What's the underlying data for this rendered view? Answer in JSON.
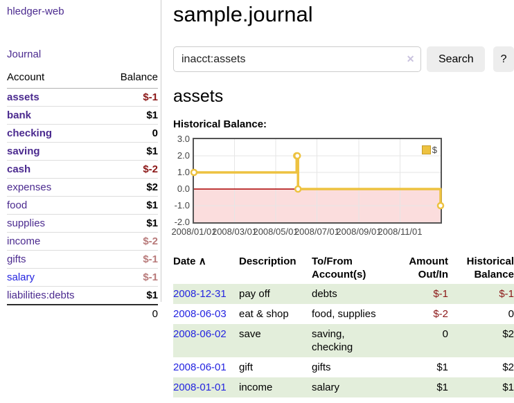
{
  "app": {
    "title": "hledger-web",
    "nav_journal": "Journal"
  },
  "sidebar": {
    "headers": {
      "account": "Account",
      "balance": "Balance"
    },
    "rows": [
      {
        "account": "assets",
        "balance": "$-1",
        "indent": 1,
        "bold": true,
        "neg": "strong",
        "blue": false
      },
      {
        "account": "bank",
        "balance": "$1",
        "indent": 2,
        "bold": true,
        "neg": "none",
        "blue": false
      },
      {
        "account": "checking",
        "balance": "0",
        "indent": 3,
        "bold": true,
        "neg": "none",
        "blue": false
      },
      {
        "account": "saving",
        "balance": "$1",
        "indent": 3,
        "bold": true,
        "neg": "none",
        "blue": false
      },
      {
        "account": "cash",
        "balance": "$-2",
        "indent": 2,
        "bold": true,
        "neg": "strong",
        "blue": false
      },
      {
        "account": "expenses",
        "balance": "$2",
        "indent": 1,
        "bold": false,
        "neg": "none",
        "blue": false
      },
      {
        "account": "food",
        "balance": "$1",
        "indent": 2,
        "bold": false,
        "neg": "none",
        "blue": false
      },
      {
        "account": "supplies",
        "balance": "$1",
        "indent": 2,
        "bold": false,
        "neg": "none",
        "blue": false
      },
      {
        "account": "income",
        "balance": "$-2",
        "indent": 1,
        "bold": false,
        "neg": "muted",
        "blue": false
      },
      {
        "account": "gifts",
        "balance": "$-1",
        "indent": 2,
        "bold": false,
        "neg": "muted",
        "blue": false
      },
      {
        "account": "salary",
        "balance": "$-1",
        "indent": 2,
        "bold": false,
        "neg": "muted",
        "blue": true
      },
      {
        "account": "liabilities:debts",
        "balance": "$1",
        "indent": 1,
        "bold": false,
        "neg": "none",
        "blue": false
      }
    ],
    "total": "0"
  },
  "main": {
    "title": "sample.journal",
    "search": {
      "value": "inacct:assets",
      "clear_icon": "✕",
      "search_label": "Search",
      "help_label": "?"
    },
    "account_heading": "assets",
    "chart_title": "Historical Balance:"
  },
  "chart_data": {
    "type": "line",
    "step": true,
    "title": "Historical Balance",
    "x_range": [
      "2008-01-01",
      "2008-12-31"
    ],
    "ylim": [
      -2,
      3
    ],
    "series": [
      {
        "name": "$",
        "color": "#edc240",
        "x": [
          "2008-01-01",
          "2008-06-01",
          "2008-06-02",
          "2008-06-03",
          "2008-12-31"
        ],
        "y": [
          1,
          2,
          2,
          0,
          -1
        ]
      }
    ],
    "x_ticks": [
      {
        "date": "2008-01-01",
        "label": "2008/01/01"
      },
      {
        "date": "2008-03-01",
        "label": "2008/03/01"
      },
      {
        "date": "2008-05-01",
        "label": "2008/05/01"
      },
      {
        "date": "2008-07-01",
        "label": "2008/07/01"
      },
      {
        "date": "2008-09-01",
        "label": "2008/09/01"
      },
      {
        "date": "2008-11-01",
        "label": "2008/11/01"
      }
    ],
    "y_ticks": [
      {
        "value": 3,
        "label": "3.0"
      },
      {
        "value": 2,
        "label": "2.0"
      },
      {
        "value": 1,
        "label": "1.0"
      },
      {
        "value": 0,
        "label": "0.0"
      },
      {
        "value": -1,
        "label": "-1.0"
      },
      {
        "value": -2,
        "label": "-2.0"
      }
    ],
    "grid": true,
    "grid_color": "#e6e6e6",
    "border_color": "#545454",
    "zero_line_color": "#aa0000",
    "negative_region": {
      "from": 0,
      "to": -2,
      "color": "#fbdddd"
    },
    "legend_position": "top-right",
    "legend_label": "$"
  },
  "register": {
    "headers": {
      "date": "Date",
      "sort_icon": "∧",
      "description": "Description",
      "accounts": "To/From Account(s)",
      "amount": "Amount Out/In",
      "balance": "Historical Balance"
    },
    "rows": [
      {
        "date": "2008-12-31",
        "description": "pay off",
        "accounts": "debts",
        "amount": "$-1",
        "amount_neg": true,
        "balance": "$-1",
        "balance_neg": true
      },
      {
        "date": "2008-06-03",
        "description": "eat & shop",
        "accounts": "food, supplies",
        "amount": "$-2",
        "amount_neg": true,
        "balance": "0",
        "balance_neg": false
      },
      {
        "date": "2008-06-02",
        "description": "save",
        "accounts": "saving, checking",
        "amount": "0",
        "amount_neg": false,
        "balance": "$2",
        "balance_neg": false
      },
      {
        "date": "2008-06-01",
        "description": "gift",
        "accounts": "gifts",
        "amount": "$1",
        "amount_neg": false,
        "balance": "$2",
        "balance_neg": false
      },
      {
        "date": "2008-01-01",
        "description": "income",
        "accounts": "salary",
        "amount": "$1",
        "amount_neg": false,
        "balance": "$1",
        "balance_neg": false
      }
    ]
  },
  "colors": {
    "link_purple": "#4b2a8f",
    "link_blue": "#2424e0",
    "negative_strong": "#8b1717",
    "negative_muted": "#b87a7a",
    "row_stripe": "#e3eedb",
    "chart_line": "#edc240"
  }
}
